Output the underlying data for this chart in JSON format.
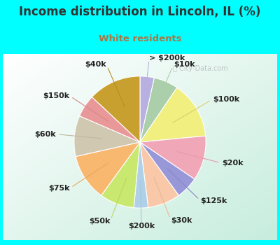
{
  "title": "Income distribution in Lincoln, IL (%)",
  "subtitle": "White residents",
  "title_color": "#333333",
  "subtitle_color": "#aa7744",
  "bg_top_color": "#00ffff",
  "chart_bg_from": "#f0faf5",
  "chart_bg_to": "#c8eee0",
  "watermark": "ⓘ City-Data.com",
  "slices": [
    {
      "label": "> $200k",
      "value": 3.5,
      "color": "#b8b0e0",
      "line_color": "#b8b0e0"
    },
    {
      "label": "$10k",
      "value": 6.0,
      "color": "#aacfaa",
      "line_color": "#aacfaa"
    },
    {
      "label": "$100k",
      "value": 14.0,
      "color": "#f0ef80",
      "line_color": "#d8d070"
    },
    {
      "label": "$20k",
      "value": 11.0,
      "color": "#f0a8b8",
      "line_color": "#e898a8"
    },
    {
      "label": "$125k",
      "value": 5.5,
      "color": "#9898d8",
      "line_color": "#8888c8"
    },
    {
      "label": "$30k",
      "value": 8.0,
      "color": "#f8c8a8",
      "line_color": "#e8b898"
    },
    {
      "label": "$200k",
      "value": 3.5,
      "color": "#b0d0e8",
      "line_color": "#a0c8e0"
    },
    {
      "label": "$50k",
      "value": 8.5,
      "color": "#c8e870",
      "line_color": "#b8d860"
    },
    {
      "label": "$75k",
      "value": 11.5,
      "color": "#f8b870",
      "line_color": "#e8a860"
    },
    {
      "label": "$60k",
      "value": 10.0,
      "color": "#d0c8b0",
      "line_color": "#c0b8a0"
    },
    {
      "label": "$150k",
      "value": 5.5,
      "color": "#e89898",
      "line_color": "#d88888"
    },
    {
      "label": "$40k",
      "value": 13.0,
      "color": "#c8a030",
      "line_color": "#b89020"
    }
  ],
  "label_fontsize": 8.0,
  "label_color": "#222222"
}
